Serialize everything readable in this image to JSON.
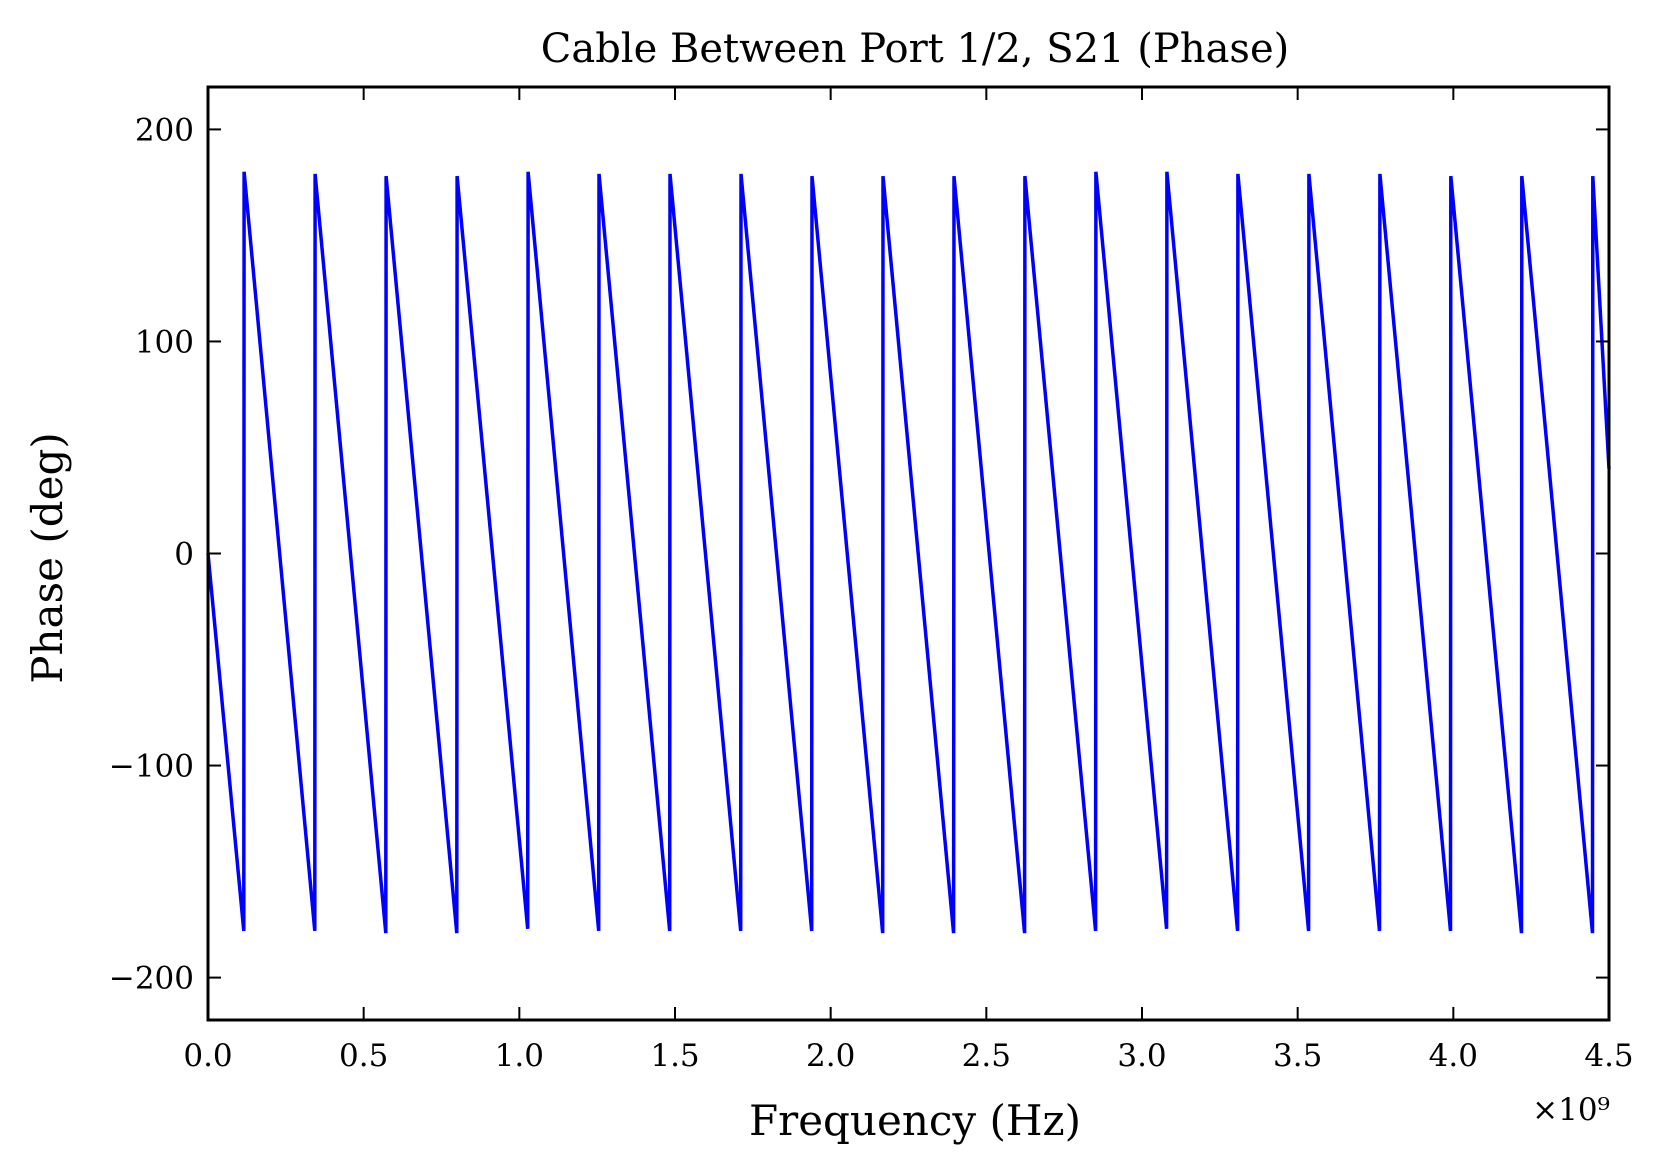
{
  "chart_data": {
    "type": "line",
    "title": "Cable Between Port 1/2, S21 (Phase)",
    "xlabel": "Frequency (Hz)",
    "ylabel": "Phase (deg)",
    "x_offset_label": "×10⁹",
    "xlim": [
      0,
      4.5
    ],
    "ylim": [
      -220,
      220
    ],
    "x_ticks": [
      0,
      0.5,
      1.0,
      1.5,
      2.0,
      2.5,
      3.0,
      3.5,
      4.0,
      4.5
    ],
    "x_tick_labels": [
      "0.0",
      "0.5",
      "1.0",
      "1.5",
      "2.0",
      "2.5",
      "3.0",
      "3.5",
      "4.0",
      "4.5"
    ],
    "y_ticks": [
      -200,
      -100,
      0,
      100,
      200
    ],
    "y_tick_labels": [
      "−200",
      "−100",
      "0",
      "100",
      "200"
    ],
    "grid": false,
    "series": [
      {
        "color": "#0000ff",
        "x": [
          0,
          0.115,
          0.116,
          0.343,
          0.344,
          0.571,
          0.572,
          0.799,
          0.8,
          1.027,
          1.028,
          1.255,
          1.256,
          1.483,
          1.484,
          1.711,
          1.712,
          1.939,
          1.94,
          2.167,
          2.168,
          2.395,
          2.396,
          2.623,
          2.624,
          2.851,
          2.852,
          3.079,
          3.08,
          3.307,
          3.308,
          3.535,
          3.536,
          3.763,
          3.764,
          3.991,
          3.992,
          4.219,
          4.22,
          4.447,
          4.448,
          4.5
        ],
        "y": [
          0,
          -178,
          180,
          -178,
          179,
          -179,
          178,
          -179,
          178,
          -177,
          180,
          -178,
          179,
          -178,
          179,
          -178,
          179,
          -178,
          178,
          -179,
          178,
          -179,
          178,
          -179,
          178,
          -178,
          180,
          -177,
          180,
          -178,
          179,
          -178,
          179,
          -178,
          179,
          -178,
          178,
          -179,
          178,
          -179,
          178,
          40
        ]
      }
    ]
  }
}
